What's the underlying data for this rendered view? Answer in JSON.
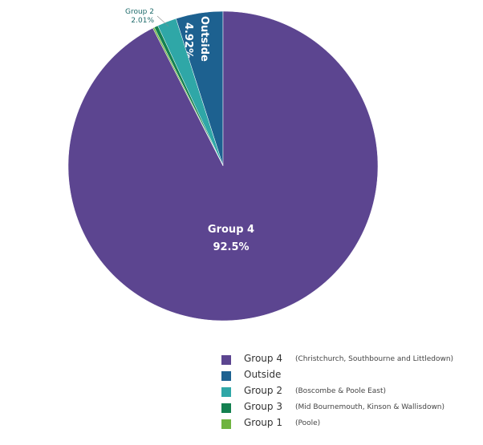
{
  "chart_data": {
    "type": "pie",
    "slices": [
      {
        "name": "Outside",
        "value": 4.92,
        "label": "4.92%",
        "color": "#1d6190",
        "desc": ""
      },
      {
        "name": "Group 2",
        "value": 2.01,
        "label": "2.01%",
        "color": "#2fa7a7",
        "desc": "(Boscombe & Poole East)"
      },
      {
        "name": "Group 3",
        "value": 0.4,
        "label": "",
        "color": "#148050",
        "desc": "(Mid Bournemouth, Kinson & Wallisdown)"
      },
      {
        "name": "Group 1",
        "value": 0.17,
        "label": "",
        "color": "#6fb440",
        "desc": "(Poole)"
      },
      {
        "name": "Group 4",
        "value": 92.5,
        "label": "92.5%",
        "color": "#5c4590",
        "desc": "(Christchurch, Southbourne and Littledown)"
      }
    ],
    "legend": [
      "Group 4",
      "Outside",
      "Group 2",
      "Group 3",
      "Group 1"
    ],
    "legend_position": "bottom-right"
  }
}
